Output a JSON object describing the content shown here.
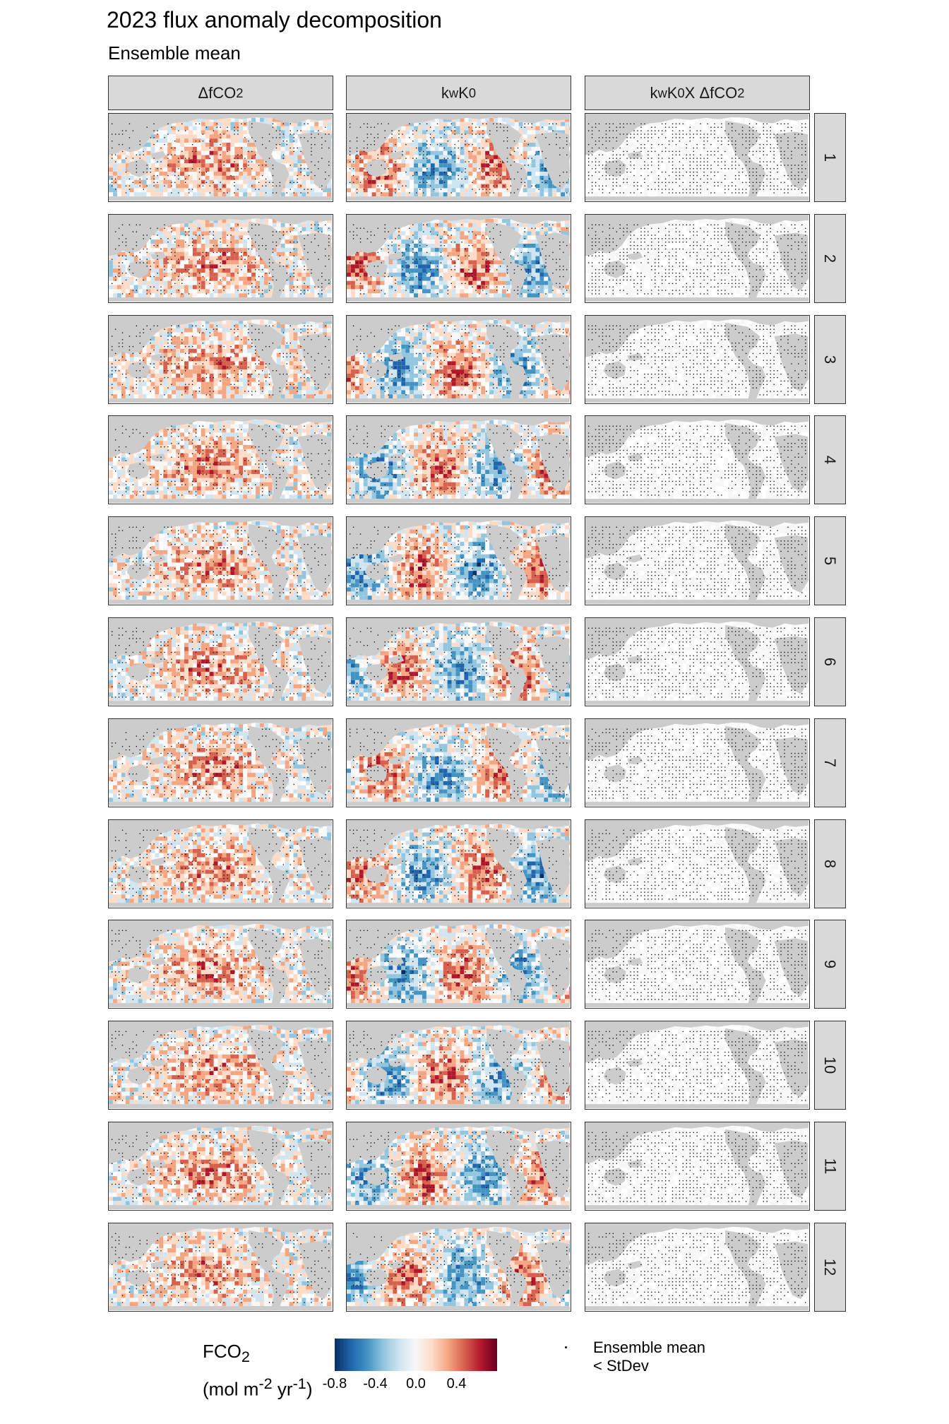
{
  "title": "2023 flux anomaly decomposition",
  "subtitle": "Ensemble mean",
  "columns": [
    {
      "label": "ΔfCO",
      "sub": "2",
      "sup": ""
    },
    {
      "label": "k",
      "sub": "w",
      "label2": " K",
      "sub2": "0"
    },
    {
      "label": "k",
      "sub": "w",
      "label2": " K",
      "sub2": "0",
      "label3": " X ΔfCO",
      "sub3": "2"
    }
  ],
  "months": [
    "1",
    "2",
    "3",
    "4",
    "5",
    "6",
    "7",
    "8",
    "9",
    "10",
    "11",
    "12"
  ],
  "legend": {
    "title_line1": "FCO",
    "title_line1_sub": "2",
    "title_line2_a": "(mol m",
    "title_line2_sup1": "-2",
    "title_line2_b": " yr",
    "title_line2_sup2": "-1",
    "title_line2_c": ")",
    "ticks": [
      "-0.8",
      "-0.4",
      "0.0",
      "0.4"
    ],
    "tick_values": [
      -0.8,
      -0.4,
      0.0,
      0.4
    ],
    "range": [
      -0.8,
      0.8
    ],
    "colors": [
      "#053061",
      "#2166ac",
      "#4393c3",
      "#92c5de",
      "#d1e5f0",
      "#f7f7f7",
      "#fddbc7",
      "#f4a582",
      "#d6604d",
      "#b2182b",
      "#67001f"
    ],
    "stat_line1": "Ensemble mean",
    "stat_line2": "< StDev"
  },
  "chart_data": {
    "type": "heatmap",
    "title": "2023 flux anomaly decomposition",
    "subtitle": "Ensemble mean",
    "facet_columns": [
      "ΔfCO2",
      "kw K0",
      "kw K0 X ΔfCO2"
    ],
    "facet_rows": [
      "1",
      "2",
      "3",
      "4",
      "5",
      "6",
      "7",
      "8",
      "9",
      "10",
      "11",
      "12"
    ],
    "colorbar_label": "FCO2 (mol m-2 yr-1)",
    "colorbar_range": [
      -0.8,
      0.8
    ],
    "colorbar_ticks": [
      -0.8,
      -0.4,
      0.0,
      0.4
    ],
    "stipple_legend": "Ensemble mean < StDev",
    "land_color": "#cccccc",
    "ocean_color": "#ffffff"
  }
}
